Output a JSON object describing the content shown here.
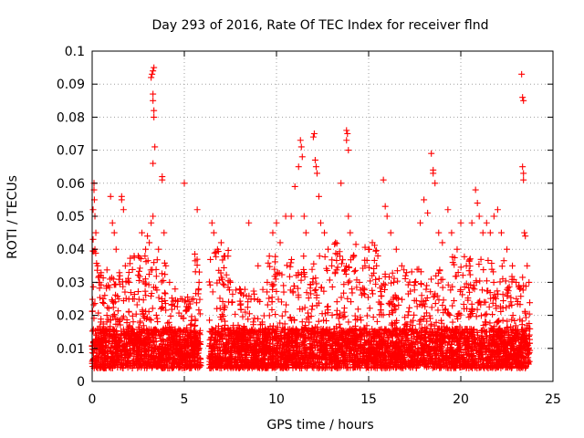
{
  "chart_data": {
    "type": "scatter",
    "title": "Day 293 of 2016, Rate Of TEC Index for receiver flnd",
    "xlabel": "GPS time / hours",
    "ylabel": "ROTI / TECUs",
    "xlim": [
      0,
      25
    ],
    "ylim": [
      0,
      0.1
    ],
    "x_ticks": [
      0,
      5,
      10,
      15,
      20,
      25
    ],
    "y_ticks": [
      0,
      0.01,
      0.02,
      0.03,
      0.04,
      0.05,
      0.06,
      0.07,
      0.08,
      0.09,
      0.1
    ],
    "x_tick_labels": [
      "0",
      "5",
      "10",
      "15",
      "20",
      "25"
    ],
    "y_tick_labels": [
      "0",
      "0.01",
      "0.02",
      "0.03",
      "0.04",
      "0.05",
      "0.06",
      "0.07",
      "0.08",
      "0.09",
      "0.1"
    ],
    "grid": true,
    "marker": "+",
    "marker_color": "#ff0000",
    "x_range_of_data": [
      0,
      23.8
    ],
    "bulk_density_note": "dense band of ROTI values 0.003-0.03 TECU across the day, gaps near 5.9-6.3 h",
    "series": [
      {
        "name": "ROTI",
        "points": [
          [
            0.05,
            0.052
          ],
          [
            0.1,
            0.058
          ],
          [
            0.1,
            0.06
          ],
          [
            0.12,
            0.055
          ],
          [
            0.15,
            0.05
          ],
          [
            0.2,
            0.045
          ],
          [
            0.05,
            0.043
          ],
          [
            0.15,
            0.04
          ],
          [
            0.3,
            0.035
          ],
          [
            0.4,
            0.03
          ],
          [
            0.6,
            0.025
          ],
          [
            0.8,
            0.02
          ],
          [
            1.0,
            0.056
          ],
          [
            1.1,
            0.048
          ],
          [
            1.2,
            0.045
          ],
          [
            1.3,
            0.04
          ],
          [
            1.5,
            0.032
          ],
          [
            1.6,
            0.055
          ],
          [
            1.6,
            0.056
          ],
          [
            1.7,
            0.052
          ],
          [
            1.8,
            0.035
          ],
          [
            2.0,
            0.03
          ],
          [
            2.2,
            0.025
          ],
          [
            2.5,
            0.038
          ],
          [
            2.7,
            0.045
          ],
          [
            2.9,
            0.04
          ],
          [
            3.0,
            0.044
          ],
          [
            3.1,
            0.042
          ],
          [
            3.2,
            0.048
          ],
          [
            3.3,
            0.05
          ],
          [
            3.25,
            0.093
          ],
          [
            3.3,
            0.094
          ],
          [
            3.35,
            0.095
          ],
          [
            3.2,
            0.092
          ],
          [
            3.3,
            0.087
          ],
          [
            3.3,
            0.085
          ],
          [
            3.35,
            0.082
          ],
          [
            3.35,
            0.08
          ],
          [
            3.4,
            0.071
          ],
          [
            3.3,
            0.066
          ],
          [
            3.8,
            0.062
          ],
          [
            3.8,
            0.061
          ],
          [
            3.9,
            0.045
          ],
          [
            3.6,
            0.04
          ],
          [
            4.0,
            0.035
          ],
          [
            4.2,
            0.03
          ],
          [
            4.5,
            0.028
          ],
          [
            4.8,
            0.025
          ],
          [
            5.0,
            0.06
          ],
          [
            5.2,
            0.022
          ],
          [
            5.5,
            0.025
          ],
          [
            5.7,
            0.052
          ],
          [
            5.8,
            0.03
          ],
          [
            6.5,
            0.048
          ],
          [
            6.6,
            0.045
          ],
          [
            6.8,
            0.04
          ],
          [
            7.0,
            0.042
          ],
          [
            7.2,
            0.038
          ],
          [
            7.5,
            0.03
          ],
          [
            8.0,
            0.028
          ],
          [
            8.5,
            0.048
          ],
          [
            8.8,
            0.025
          ],
          [
            9.0,
            0.035
          ],
          [
            9.5,
            0.03
          ],
          [
            9.8,
            0.045
          ],
          [
            10.0,
            0.048
          ],
          [
            10.2,
            0.042
          ],
          [
            10.5,
            0.05
          ],
          [
            10.8,
            0.05
          ],
          [
            11.0,
            0.059
          ],
          [
            11.2,
            0.065
          ],
          [
            11.3,
            0.073
          ],
          [
            11.35,
            0.071
          ],
          [
            11.4,
            0.068
          ],
          [
            11.5,
            0.05
          ],
          [
            11.6,
            0.045
          ],
          [
            12.0,
            0.074
          ],
          [
            12.05,
            0.075
          ],
          [
            12.1,
            0.067
          ],
          [
            12.15,
            0.065
          ],
          [
            12.2,
            0.063
          ],
          [
            12.3,
            0.056
          ],
          [
            12.4,
            0.048
          ],
          [
            12.6,
            0.045
          ],
          [
            12.8,
            0.04
          ],
          [
            13.0,
            0.035
          ],
          [
            13.2,
            0.042
          ],
          [
            13.5,
            0.06
          ],
          [
            13.8,
            0.076
          ],
          [
            13.85,
            0.075
          ],
          [
            13.8,
            0.073
          ],
          [
            13.9,
            0.07
          ],
          [
            13.9,
            0.05
          ],
          [
            14.0,
            0.045
          ],
          [
            14.2,
            0.038
          ],
          [
            14.5,
            0.03
          ],
          [
            14.8,
            0.035
          ],
          [
            15.0,
            0.04
          ],
          [
            15.2,
            0.042
          ],
          [
            15.5,
            0.038
          ],
          [
            15.8,
            0.061
          ],
          [
            15.9,
            0.053
          ],
          [
            16.0,
            0.05
          ],
          [
            16.2,
            0.045
          ],
          [
            16.5,
            0.04
          ],
          [
            16.8,
            0.035
          ],
          [
            17.0,
            0.032
          ],
          [
            17.5,
            0.03
          ],
          [
            17.8,
            0.048
          ],
          [
            18.0,
            0.055
          ],
          [
            18.2,
            0.051
          ],
          [
            18.4,
            0.069
          ],
          [
            18.5,
            0.064
          ],
          [
            18.5,
            0.063
          ],
          [
            18.6,
            0.06
          ],
          [
            18.8,
            0.045
          ],
          [
            19.0,
            0.042
          ],
          [
            19.3,
            0.052
          ],
          [
            19.5,
            0.045
          ],
          [
            19.8,
            0.04
          ],
          [
            20.0,
            0.048
          ],
          [
            20.3,
            0.035
          ],
          [
            20.6,
            0.048
          ],
          [
            20.8,
            0.058
          ],
          [
            20.9,
            0.054
          ],
          [
            21.0,
            0.05
          ],
          [
            21.2,
            0.045
          ],
          [
            21.4,
            0.048
          ],
          [
            21.6,
            0.045
          ],
          [
            21.8,
            0.05
          ],
          [
            22.0,
            0.052
          ],
          [
            22.2,
            0.045
          ],
          [
            22.5,
            0.04
          ],
          [
            22.8,
            0.035
          ],
          [
            23.0,
            0.03
          ],
          [
            23.2,
            0.028
          ],
          [
            23.3,
            0.093
          ],
          [
            23.35,
            0.086
          ],
          [
            23.4,
            0.085
          ],
          [
            23.35,
            0.065
          ],
          [
            23.4,
            0.063
          ],
          [
            23.4,
            0.061
          ],
          [
            23.45,
            0.045
          ],
          [
            23.5,
            0.044
          ],
          [
            23.6,
            0.035
          ],
          [
            23.7,
            0.03
          ]
        ]
      }
    ]
  }
}
